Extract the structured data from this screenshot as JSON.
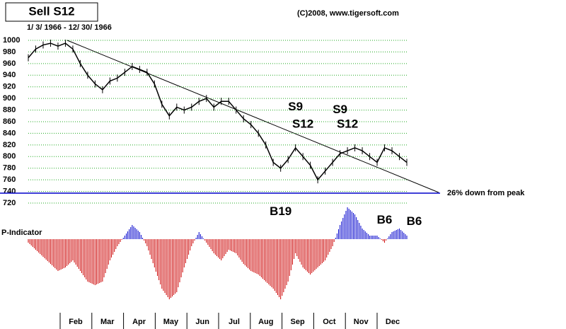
{
  "chart_data": {
    "type": "price-bar",
    "title": "Sell S12",
    "date_range": "1/ 3/ 1966 - 12/ 30/ 1966",
    "copyright": "(C)2008, www.tigersoft.com",
    "ylim": [
      720,
      1000
    ],
    "yticks": [
      720,
      740,
      760,
      780,
      800,
      820,
      840,
      860,
      880,
      900,
      920,
      940,
      960,
      980,
      1000
    ],
    "grid": true,
    "series": [
      {
        "name": "DJIA",
        "color": "#000000",
        "values": [
          970,
          985,
          992,
          995,
          990,
          995,
          985,
          960,
          940,
          925,
          915,
          930,
          935,
          945,
          955,
          950,
          945,
          925,
          890,
          870,
          885,
          880,
          885,
          895,
          900,
          885,
          895,
          895,
          880,
          865,
          855,
          840,
          820,
          790,
          780,
          795,
          815,
          800,
          785,
          760,
          775,
          790,
          805,
          810,
          815,
          810,
          800,
          790,
          815,
          810,
          800,
          790
        ]
      }
    ],
    "reference_line": {
      "value": 737,
      "label": "26% down from peak",
      "color": "#0000cc"
    },
    "months": [
      "Feb",
      "Mar",
      "Apr",
      "May",
      "Jun",
      "Jul",
      "Aug",
      "Sep",
      "Oct",
      "Nov",
      "Dec"
    ],
    "signals": [
      {
        "label": "S9",
        "index": 36,
        "price": 885
      },
      {
        "label": "S12",
        "index": 37,
        "price": 855
      },
      {
        "label": "S9",
        "index": 42,
        "price": 880
      },
      {
        "label": "S12",
        "index": 43,
        "price": 855
      },
      {
        "label": "B19",
        "index": 34,
        "price": 705
      },
      {
        "label": "B6",
        "index": 48,
        "price": 690
      },
      {
        "label": "B6",
        "index": 52,
        "price": 688
      }
    ],
    "indicator": {
      "name": "P-Indicator",
      "positive_color": "#0000cc",
      "negative_color": "#cc0000",
      "values": [
        -5,
        -15,
        -25,
        -35,
        -45,
        -40,
        -30,
        -45,
        -60,
        -65,
        -60,
        -30,
        -10,
        5,
        20,
        10,
        -10,
        -40,
        -70,
        -85,
        -75,
        -40,
        -10,
        10,
        -5,
        -20,
        -30,
        -15,
        -20,
        -35,
        -45,
        -50,
        -60,
        -70,
        -85,
        -60,
        -20,
        -40,
        -50,
        -40,
        -30,
        -10,
        20,
        45,
        35,
        15,
        5,
        5,
        -5,
        10,
        15,
        5
      ]
    }
  }
}
